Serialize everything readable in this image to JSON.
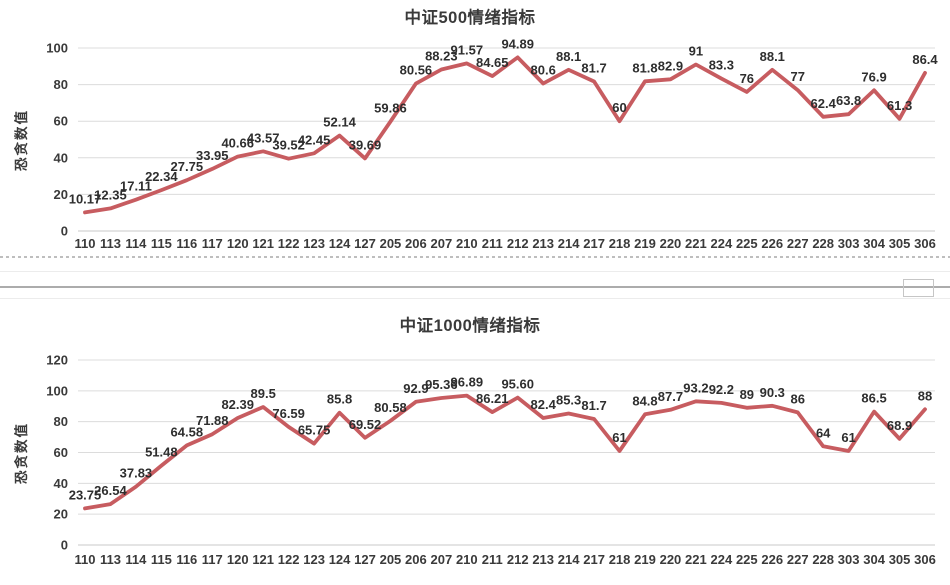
{
  "chart_data": [
    {
      "type": "line",
      "title": "中证500情绪指标",
      "xlabel": "",
      "ylabel": "恐贪数值",
      "categories": [
        "110",
        "113",
        "114",
        "115",
        "116",
        "117",
        "120",
        "121",
        "122",
        "123",
        "124",
        "127",
        "205",
        "206",
        "207",
        "210",
        "211",
        "212",
        "213",
        "214",
        "217",
        "218",
        "219",
        "220",
        "221",
        "224",
        "225",
        "226",
        "227",
        "228",
        "303",
        "304",
        "305",
        "306"
      ],
      "series": [
        {
          "name": "",
          "values": [
            10.17,
            12.35,
            17.11,
            22.34,
            27.75,
            33.95,
            40.66,
            43.57,
            39.52,
            42.45,
            52.14,
            39.69,
            59.86,
            80.56,
            88.23,
            91.57,
            84.65,
            94.89,
            80.6,
            88.1,
            81.7,
            60,
            81.8,
            82.9,
            91,
            83.3,
            76,
            88.1,
            77,
            62.4,
            63.8,
            76.9,
            61.3,
            86.4
          ],
          "labels": [
            "10.17",
            "12.35",
            "17.11",
            "22.34",
            "27.75",
            "33.95",
            "40.66",
            "43.57",
            "39.52",
            "42.45",
            "52.14",
            "39.69",
            "59.86",
            "80.56",
            "88.23",
            "91.57",
            "84.65",
            "94.89",
            "80.6",
            "88.1",
            "81.7",
            "60",
            "81.8",
            "82.9",
            "91",
            "83.3",
            "76",
            "88.1",
            "77",
            "62.4",
            "63.8",
            "76.9",
            "61.3",
            "86.4"
          ]
        }
      ],
      "ylim": [
        0,
        100
      ],
      "yticks": [
        0,
        20,
        40,
        60,
        80,
        100
      ],
      "grid": true,
      "legend": "none",
      "line_color": "#c75c60",
      "label_color": "#2e2e2e",
      "axis_text_color": "#3a3a3a",
      "grid_color": "#dcdcdc"
    },
    {
      "type": "line",
      "title": "中证1000情绪指标",
      "xlabel": "",
      "ylabel": "恐贪数值",
      "categories": [
        "110",
        "113",
        "114",
        "115",
        "116",
        "117",
        "120",
        "121",
        "122",
        "123",
        "124",
        "127",
        "205",
        "206",
        "207",
        "210",
        "211",
        "212",
        "213",
        "214",
        "217",
        "218",
        "219",
        "220",
        "221",
        "224",
        "225",
        "226",
        "227",
        "228",
        "303",
        "304",
        "305",
        "306"
      ],
      "series": [
        {
          "name": "",
          "values": [
            23.75,
            26.54,
            37.83,
            51.48,
            64.58,
            71.88,
            82.39,
            89.5,
            76.59,
            65.75,
            85.8,
            69.52,
            80.58,
            92.9,
            95.36,
            96.89,
            86.21,
            95.6,
            82.4,
            85.3,
            81.7,
            61,
            84.8,
            87.7,
            93.2,
            92.2,
            89,
            90.3,
            86,
            64,
            61,
            86.5,
            68.9,
            88
          ],
          "labels": [
            "23.75",
            "26.54",
            "37.83",
            "51.48",
            "64.58",
            "71.88",
            "82.39",
            "89.5",
            "76.59",
            "65.75",
            "85.8",
            "69.52",
            "80.58",
            "92.9",
            "95.36",
            "96.89",
            "86.21",
            "95.60",
            "82.4",
            "85.3",
            "81.7",
            "61",
            "84.8",
            "87.7",
            "93.2",
            "92.2",
            "89",
            "90.3",
            "86",
            "64",
            "61",
            "86.5",
            "68.9",
            "88"
          ]
        }
      ],
      "ylim": [
        0,
        120
      ],
      "yticks": [
        0,
        20,
        40,
        60,
        80,
        100,
        120
      ],
      "grid": true,
      "legend": "none",
      "line_color": "#c75c60",
      "label_color": "#2e2e2e",
      "axis_text_color": "#3a3a3a",
      "grid_color": "#dcdcdc"
    }
  ]
}
